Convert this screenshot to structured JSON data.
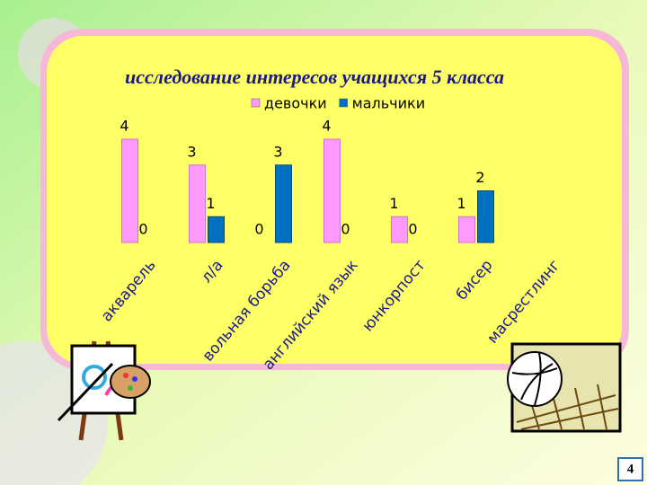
{
  "chart_data": {
    "type": "bar",
    "title": "исследование  интересов учащихся 5 класса",
    "categories": [
      "акварель",
      "л/а",
      "вольная борьба",
      "английский язык",
      "юнкорпост",
      "бисер",
      "масрестлинг"
    ],
    "series": [
      {
        "name": "девочки",
        "color": "#ff99ff",
        "values": [
          4,
          3,
          0,
          4,
          1,
          1,
          null
        ]
      },
      {
        "name": "мальчики",
        "color": "#0070c0",
        "values": [
          0,
          1,
          3,
          0,
          0,
          2,
          null
        ]
      }
    ],
    "legend": "top"
  },
  "page_number": "4"
}
